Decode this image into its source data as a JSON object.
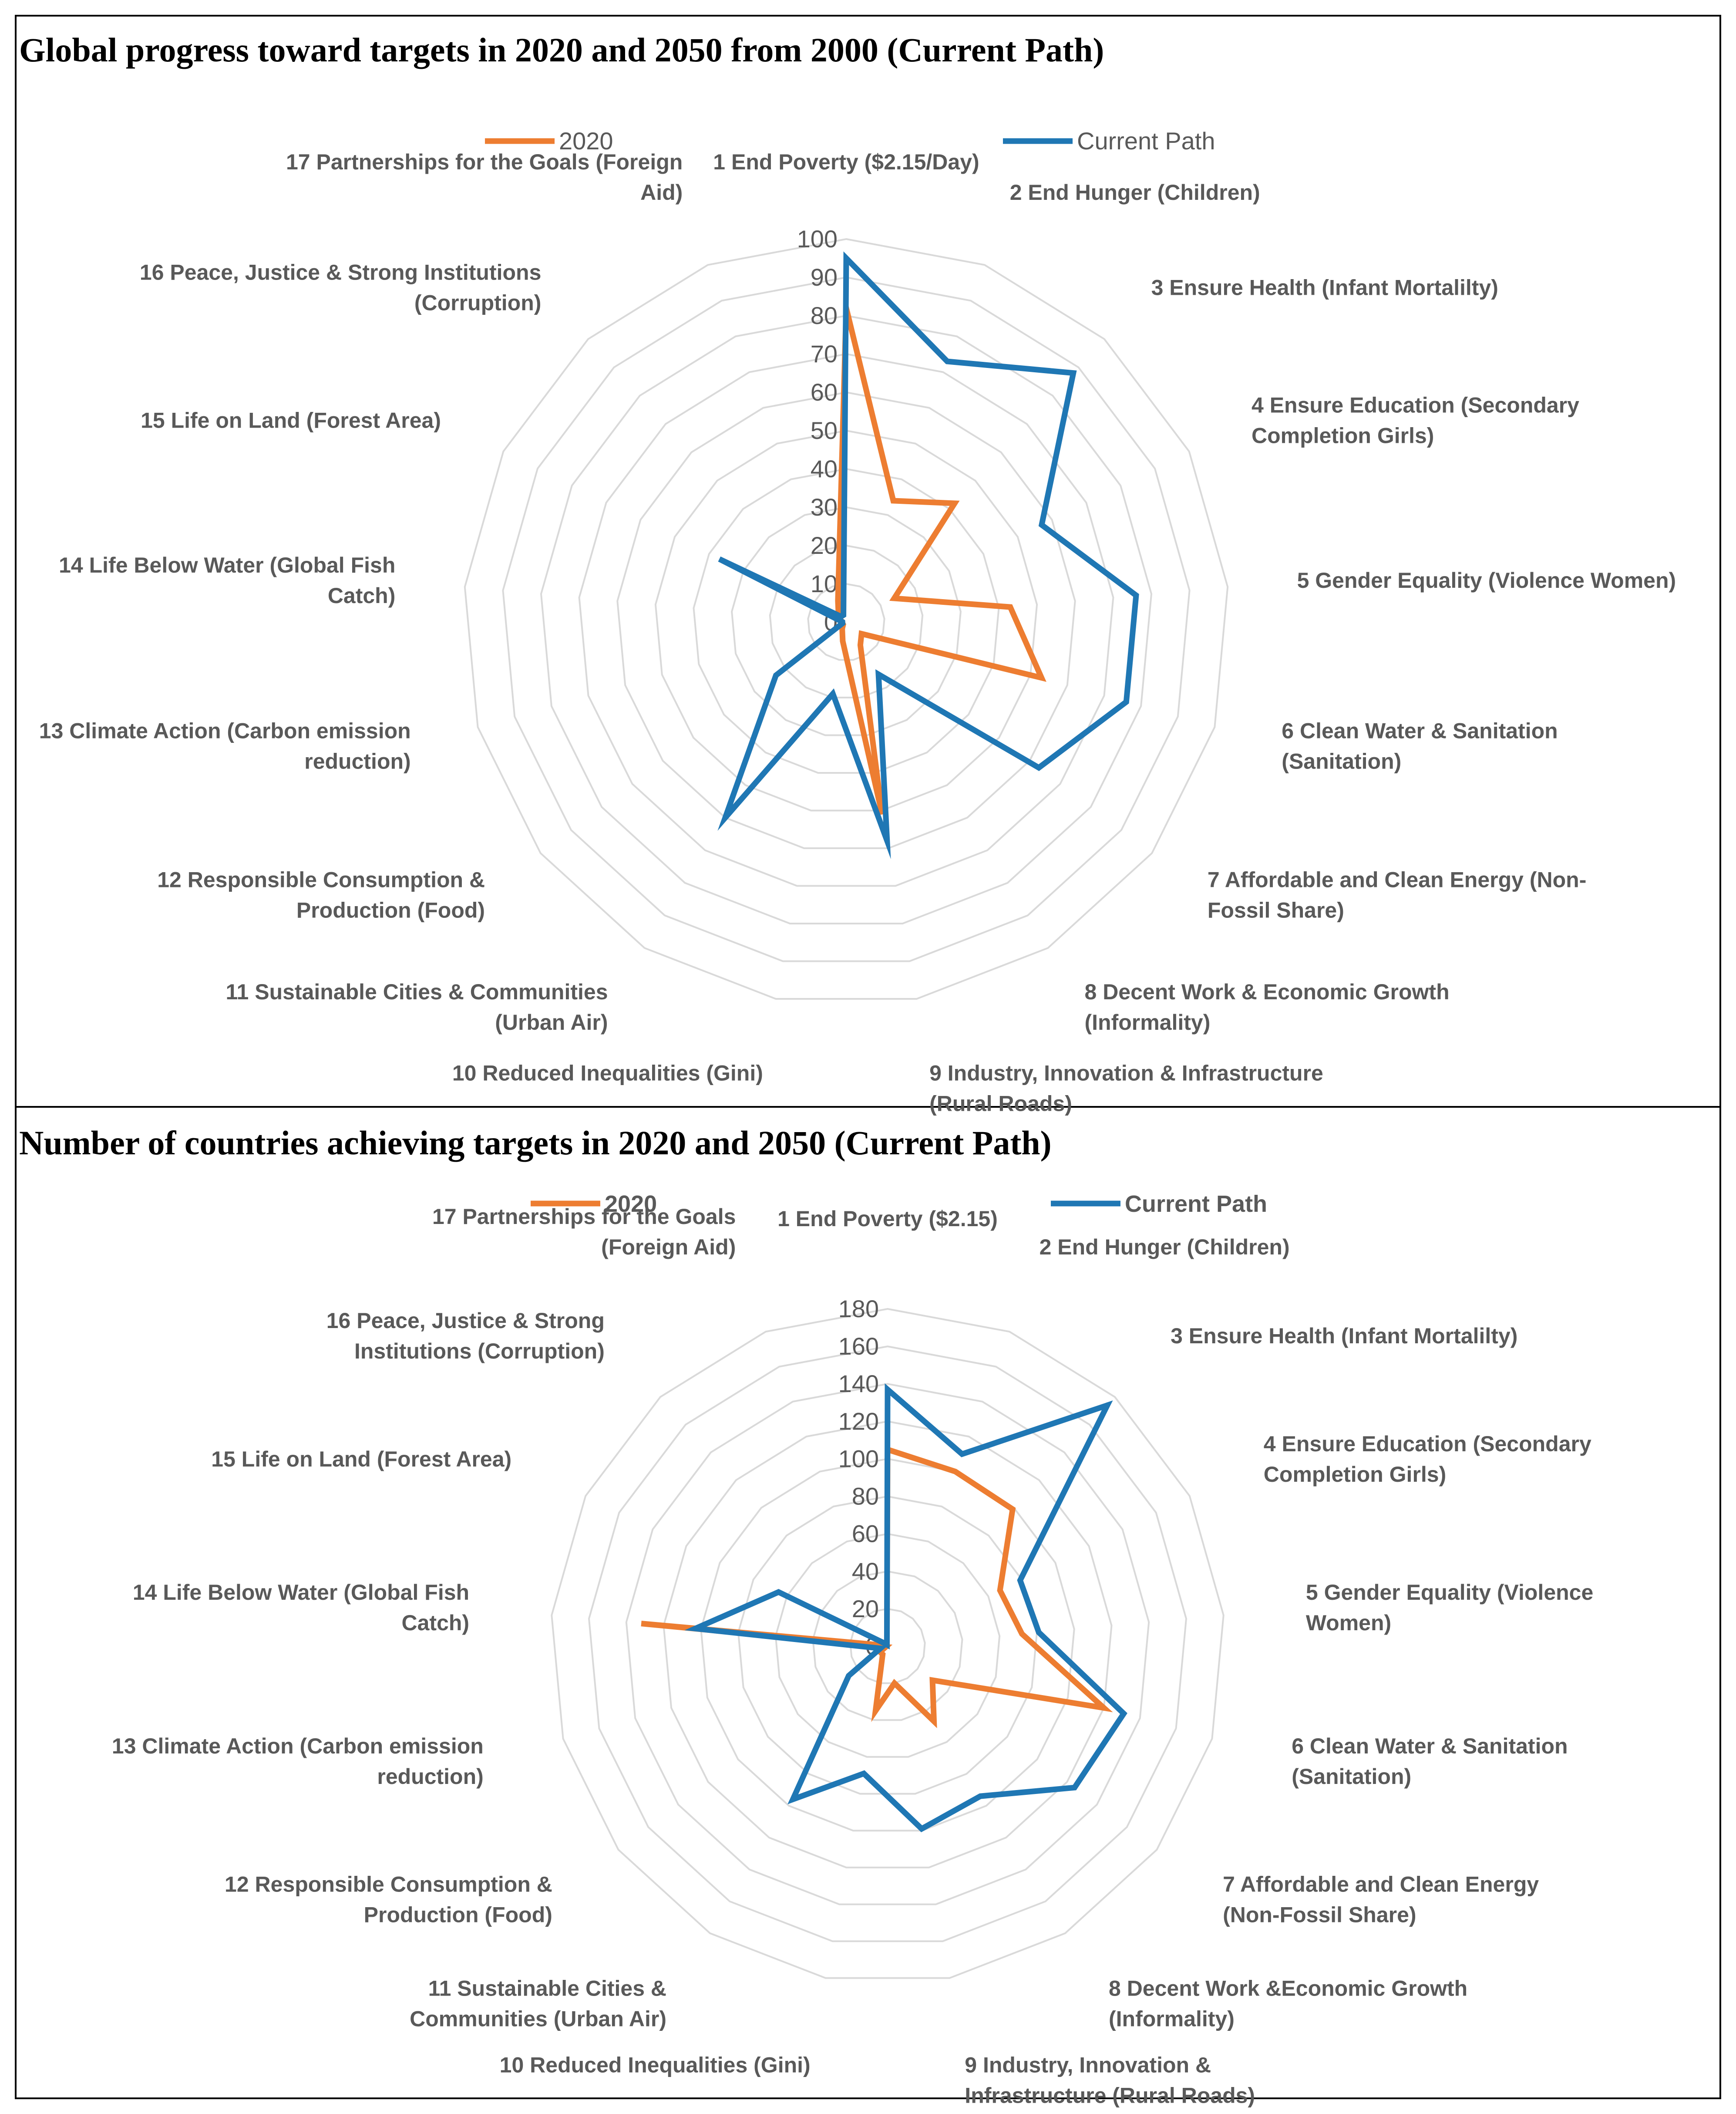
{
  "colors": {
    "series_2020": "#ED7D31",
    "series_current": "#1F77B4",
    "grid": "#D9D9D9",
    "label": "#595959"
  },
  "chart_data": [
    {
      "type": "radar",
      "title": "Global progress toward targets in 2020 and 2050 from 2000 (Current Path)",
      "rlim": [
        0,
        100
      ],
      "ticks": [
        "0",
        "10",
        "20",
        "30",
        "40",
        "50",
        "60",
        "70",
        "80",
        "90",
        "100"
      ],
      "categories": [
        [
          "1 End Poverty ($2.15/Day)"
        ],
        [
          "2 End  Hunger (Children)"
        ],
        [
          "3 Ensure Health (Infant Mortalilty)"
        ],
        [
          "4 Ensure Education (Secondary",
          "Completion Girls)"
        ],
        [
          "5 Gender Equality (Violence Women)"
        ],
        [
          "6 Clean Water & Sanitation",
          "(Sanitation)"
        ],
        [
          "7 Affordable and Clean Energy (Non-",
          "Fossil Share)"
        ],
        [
          "8 Decent Work & Economic Growth",
          "(Informality)"
        ],
        [
          "9 Industry, Innovation & Infrastructure",
          "(Rural Roads)"
        ],
        [
          "10 Reduced Inequalities (Gini)"
        ],
        [
          "11 Sustainable Cities & Communities",
          "(Urban Air)"
        ],
        [
          "12 Responsible Consumption &",
          "Production (Food)"
        ],
        [
          "13 Climate Action (Carbon emission",
          "reduction)"
        ],
        [
          "14 Life Below Water (Global Fish",
          "Catch)"
        ],
        [
          "15 Life on Land (Forest Area)"
        ],
        [
          "16 Peace, Justice & Strong Institutions",
          "(Corruption)"
        ],
        [
          "17 Partnerships for the Goals (Foreign",
          "Aid)"
        ]
      ],
      "series": [
        {
          "name": "2020",
          "values": [
            82,
            34,
            42,
            14,
            43,
            53,
            5,
            7,
            51,
            5,
            2,
            1,
            1,
            1,
            2,
            3,
            6
          ]
        },
        {
          "name": "Current Path",
          "values": [
            95,
            73,
            88,
            57,
            76,
            76,
            63,
            16,
            58,
            19,
            60,
            23,
            1,
            1,
            37,
            2,
            2
          ]
        }
      ]
    },
    {
      "type": "radar",
      "title": "Number of countries achieving targets in 2020 and 2050 (Current Path)",
      "rlim": [
        0,
        180
      ],
      "ticks": [
        "0",
        "20",
        "40",
        "60",
        "80",
        "100",
        "120",
        "140",
        "160",
        "180"
      ],
      "categories": [
        [
          "1 End Poverty ($2.15)"
        ],
        [
          "2 End  Hunger (Children)"
        ],
        [
          "3 Ensure Health (Infant Mortalilty)"
        ],
        [
          "4 Ensure Education (Secondary",
          "Completion Girls)"
        ],
        [
          "5 Gender Equality (Violence",
          "Women)"
        ],
        [
          "6 Clean Water & Sanitation",
          "(Sanitation)"
        ],
        [
          "7 Affordable and Clean Energy",
          "(Non-Fossil Share)"
        ],
        [
          "8 Decent Work &Economic Growth",
          "(Informality)"
        ],
        [
          "9 Industry, Innovation &",
          "Infrastructure (Rural Roads)"
        ],
        [
          "10 Reduced Inequalities (Gini)"
        ],
        [
          "11 Sustainable Cities &",
          "Communities (Urban Air)"
        ],
        [
          "12 Responsible Consumption &",
          "Production (Food)"
        ],
        [
          "13 Climate Action (Carbon emission",
          "reduction)"
        ],
        [
          "14 Life Below Water (Global Fish",
          "Catch)"
        ],
        [
          "15 Life on Land (Forest Area)"
        ],
        [
          "16 Peace, Justice & Strong",
          "Institutions (Corruption)"
        ],
        [
          "17 Partnerships for the Goals",
          "(Foreign Aid)"
        ]
      ],
      "series": [
        {
          "name": "2020",
          "values": [
            105,
            100,
            99,
            67,
            72,
            120,
            30,
            47,
            20,
            35,
            5,
            5,
            1,
            132,
            1,
            1,
            1
          ]
        },
        {
          "name": "Current Path",
          "values": [
            137,
            110,
            174,
            79,
            81,
            131,
            125,
            94,
            99,
            69,
            96,
            26,
            4,
            103,
            65,
            2,
            1
          ]
        }
      ]
    }
  ]
}
